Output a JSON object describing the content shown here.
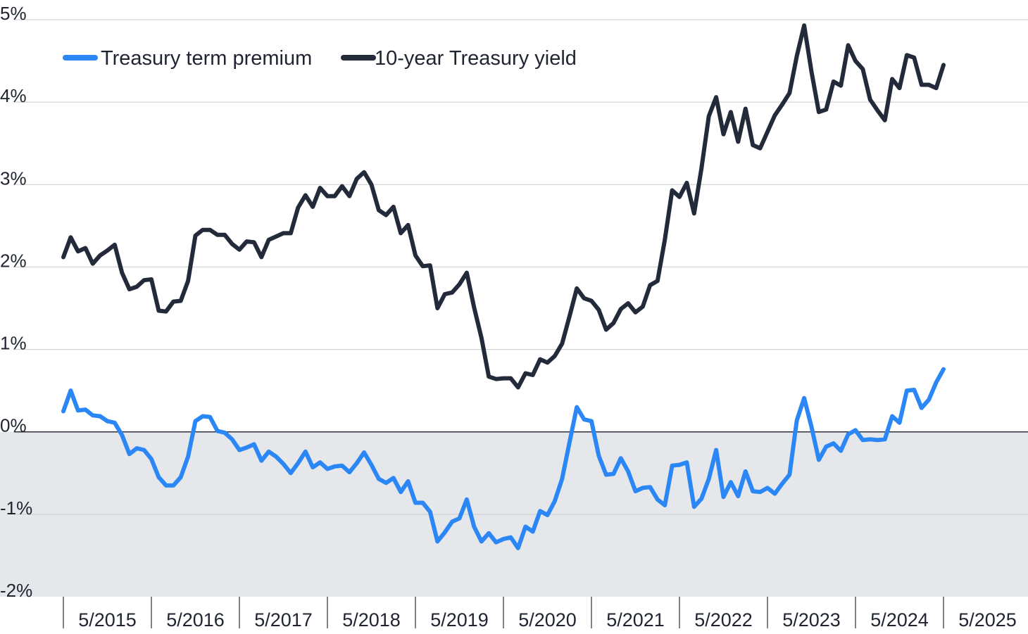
{
  "chart_data": {
    "type": "line",
    "title": "",
    "xlabel": "",
    "ylabel": "",
    "ylim": [
      -2,
      5
    ],
    "y_ticks": [
      "5%",
      "4%",
      "3%",
      "2%",
      "1%",
      "0%",
      "-1%",
      "-2%"
    ],
    "x_ticks": [
      "5/2015",
      "5/2016",
      "5/2017",
      "5/2018",
      "5/2019",
      "5/2020",
      "5/2021",
      "5/2022",
      "5/2023",
      "5/2024",
      "5/2025"
    ],
    "grid": true,
    "negative_region_shaded": true,
    "legend_position": "top-left",
    "x_start": "1/2015",
    "x_interval": "month",
    "series": [
      {
        "name": "Treasury term premium",
        "color": "#2b87f5",
        "values": [
          0.25,
          0.5,
          0.26,
          0.27,
          0.2,
          0.19,
          0.13,
          0.11,
          -0.04,
          -0.27,
          -0.2,
          -0.22,
          -0.33,
          -0.55,
          -0.65,
          -0.65,
          -0.55,
          -0.3,
          0.13,
          0.19,
          0.18,
          0.01,
          -0.01,
          -0.09,
          -0.22,
          -0.19,
          -0.15,
          -0.35,
          -0.24,
          -0.3,
          -0.39,
          -0.5,
          -0.38,
          -0.24,
          -0.43,
          -0.37,
          -0.45,
          -0.42,
          -0.41,
          -0.49,
          -0.38,
          -0.25,
          -0.4,
          -0.57,
          -0.62,
          -0.56,
          -0.73,
          -0.6,
          -0.86,
          -0.86,
          -0.97,
          -1.33,
          -1.22,
          -1.09,
          -1.05,
          -0.82,
          -1.15,
          -1.33,
          -1.23,
          -1.34,
          -1.3,
          -1.28,
          -1.41,
          -1.15,
          -1.21,
          -0.96,
          -1.01,
          -0.84,
          -0.57,
          -0.13,
          0.3,
          0.15,
          0.13,
          -0.29,
          -0.52,
          -0.51,
          -0.32,
          -0.48,
          -0.72,
          -0.68,
          -0.67,
          -0.82,
          -0.89,
          -0.41,
          -0.4,
          -0.37,
          -0.91,
          -0.81,
          -0.57,
          -0.22,
          -0.79,
          -0.61,
          -0.78,
          -0.48,
          -0.72,
          -0.73,
          -0.68,
          -0.75,
          -0.63,
          -0.52,
          0.14,
          0.41,
          0.06,
          -0.34,
          -0.18,
          -0.14,
          -0.23,
          -0.03,
          0.02,
          -0.1,
          -0.09,
          -0.1,
          -0.09,
          0.19,
          0.11,
          0.5,
          0.51,
          0.29,
          0.39,
          0.6,
          0.76
        ]
      },
      {
        "name": "10-year Treasury yield",
        "color": "#232a3a",
        "values": [
          2.12,
          2.36,
          2.19,
          2.23,
          2.04,
          2.14,
          2.2,
          2.27,
          1.93,
          1.73,
          1.76,
          1.84,
          1.85,
          1.47,
          1.46,
          1.58,
          1.59,
          1.83,
          2.38,
          2.45,
          2.45,
          2.39,
          2.39,
          2.28,
          2.21,
          2.31,
          2.3,
          2.12,
          2.33,
          2.37,
          2.41,
          2.41,
          2.72,
          2.87,
          2.73,
          2.96,
          2.86,
          2.86,
          2.98,
          2.86,
          3.07,
          3.15,
          3.0,
          2.69,
          2.63,
          2.73,
          2.41,
          2.51,
          2.14,
          2.01,
          2.02,
          1.5,
          1.67,
          1.69,
          1.79,
          1.93,
          1.51,
          1.14,
          0.67,
          0.64,
          0.65,
          0.65,
          0.54,
          0.71,
          0.69,
          0.88,
          0.84,
          0.92,
          1.07,
          1.4,
          1.74,
          1.62,
          1.59,
          1.48,
          1.24,
          1.32,
          1.49,
          1.56,
          1.45,
          1.52,
          1.78,
          1.83,
          2.33,
          2.93,
          2.85,
          3.02,
          2.65,
          3.2,
          3.83,
          4.06,
          3.61,
          3.88,
          3.52,
          3.92,
          3.48,
          3.44,
          3.64,
          3.84,
          3.97,
          4.11,
          4.56,
          4.93,
          4.37,
          3.88,
          3.91,
          4.25,
          4.2,
          4.69,
          4.5,
          4.4,
          4.03,
          3.9,
          3.78,
          4.28,
          4.17,
          4.57,
          4.54,
          4.21,
          4.21,
          4.17,
          4.45
        ]
      }
    ]
  }
}
